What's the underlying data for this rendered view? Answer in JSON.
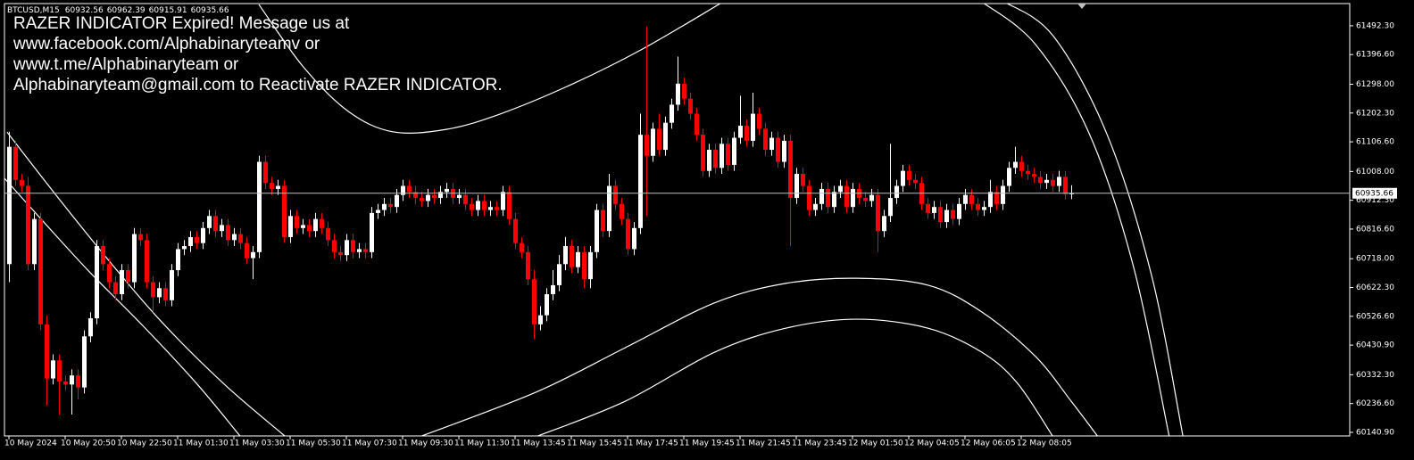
{
  "chart_data": {
    "type": "candlestick",
    "symbol": "BTCUSD,M15",
    "annotations": [
      "RAZER INDICATOR Expired! Message us at",
      "www.facebook.com/Alphabinaryteamv or",
      "www.t.me/Alphabinaryteam or",
      "Alphabinaryteam@gmail.com to Reactivate RAZER INDICATOR."
    ],
    "categories": [
      "10 May 2024",
      null,
      null,
      null,
      null,
      null,
      null,
      null,
      null,
      "10 May 20:50",
      null,
      null,
      null,
      null,
      null,
      null,
      null,
      null,
      "10 May 22:50",
      null,
      null,
      null,
      null,
      null,
      null,
      null,
      null,
      "11 May 01:30",
      null,
      null,
      null,
      null,
      null,
      null,
      null,
      null,
      "11 May 03:30",
      null,
      null,
      null,
      null,
      null,
      null,
      null,
      null,
      "11 May 05:30",
      null,
      null,
      null,
      null,
      null,
      null,
      null,
      null,
      "11 May 07:30",
      null,
      null,
      null,
      null,
      null,
      null,
      null,
      null,
      "11 May 09:30",
      null,
      null,
      null,
      null,
      null,
      null,
      null,
      null,
      "11 May 11:30",
      null,
      null,
      null,
      null,
      null,
      null,
      null,
      null,
      "11 May 13:45",
      null,
      null,
      null,
      null,
      null,
      null,
      null,
      null,
      "11 May 15:45",
      null,
      null,
      null,
      null,
      null,
      null,
      null,
      null,
      "11 May 17:45",
      null,
      null,
      null,
      null,
      null,
      null,
      null,
      null,
      "11 May 19:45",
      null,
      null,
      null,
      null,
      null,
      null,
      null,
      null,
      "11 May 21:45",
      null,
      null,
      null,
      null,
      null,
      null,
      null,
      null,
      "11 May 23:45",
      null,
      null,
      null,
      null,
      null,
      null,
      null,
      null,
      "12 May 01:50",
      null,
      null,
      null,
      null,
      null,
      null,
      null,
      null,
      "12 May 04:05",
      null,
      null,
      null,
      null,
      null,
      null,
      null,
      null,
      "12 May 06:05",
      null,
      null,
      null,
      null,
      null,
      null,
      null,
      null,
      "12 May 08:05",
      null,
      null,
      null,
      null,
      null,
      null,
      null,
      null
    ],
    "open": [
      60700,
      61090,
      60980,
      60960,
      60700,
      60850,
      60500,
      60320,
      60380,
      60310,
      60300,
      60330,
      60290,
      60460,
      60520,
      60760,
      60700,
      60640,
      60600,
      60680,
      60640,
      60800,
      60780,
      60640,
      60590,
      60620,
      60580,
      60680,
      60750,
      60760,
      60790,
      60770,
      60820,
      60860,
      60810,
      60830,
      60780,
      60800,
      60770,
      60720,
      60740,
      61040,
      60970,
      60950,
      60960,
      60790,
      60860,
      60820,
      60830,
      60810,
      60850,
      60820,
      60780,
      60740,
      60730,
      60780,
      60740,
      60750,
      60740,
      60870,
      60880,
      60900,
      60890,
      60930,
      60960,
      60940,
      60920,
      60910,
      60930,
      60920,
      60940,
      60950,
      60920,
      60930,
      60900,
      60880,
      60910,
      60880,
      60890,
      60880,
      60940,
      60850,
      60770,
      60740,
      60650,
      60500,
      60530,
      60600,
      60630,
      60700,
      60760,
      60690,
      60740,
      60650,
      60740,
      60880,
      60810,
      60960,
      60900,
      60850,
      60750,
      60820,
      61130,
      61060,
      61150,
      61080,
      61170,
      61230,
      61300,
      61250,
      61200,
      61130,
      61010,
      61080,
      61020,
      61100,
      61030,
      61120,
      61160,
      61110,
      61200,
      61150,
      61080,
      61120,
      61040,
      61110,
      60920,
      61000,
      60960,
      60880,
      60900,
      60950,
      60890,
      60940,
      60960,
      60890,
      60950,
      60920,
      60910,
      60930,
      60810,
      60860,
      60920,
      60960,
      61010,
      60980,
      60970,
      60900,
      60870,
      60890,
      60840,
      60880,
      60850,
      60900,
      60930,
      60900,
      60880,
      60890,
      60940,
      60900,
      60960,
      61020,
      61040,
      61010,
      61000,
      60990,
      60970,
      60980,
      60960,
      60990,
      60932.56
    ],
    "high": [
      61140,
      61110,
      61000,
      60990,
      60870,
      60870,
      60530,
      60400,
      60400,
      60330,
      60350,
      60350,
      60480,
      60540,
      60780,
      60780,
      60720,
      60660,
      60700,
      60700,
      60820,
      60820,
      60800,
      60660,
      60640,
      60640,
      60700,
      60770,
      60780,
      60810,
      60810,
      60840,
      60880,
      60880,
      60850,
      60850,
      60820,
      60820,
      60790,
      60760,
      61060,
      61060,
      60990,
      60980,
      60980,
      60880,
      60880,
      60850,
      60850,
      60870,
      60870,
      60840,
      60800,
      60760,
      60800,
      60800,
      60770,
      60770,
      60890,
      60900,
      60920,
      60920,
      60950,
      60980,
      60980,
      60960,
      60940,
      60950,
      60950,
      60960,
      60970,
      60970,
      60950,
      60950,
      60920,
      60930,
      60930,
      60910,
      60910,
      60960,
      60960,
      60870,
      60790,
      60760,
      60680,
      60560,
      60620,
      60680,
      60730,
      60790,
      60780,
      60760,
      60760,
      60760,
      60900,
      60900,
      61000,
      60980,
      60920,
      60870,
      60840,
      61200,
      61490,
      61170,
      61200,
      61190,
      61250,
      61390,
      61320,
      61270,
      61220,
      61150,
      61100,
      61100,
      61120,
      61120,
      61140,
      61260,
      61180,
      61270,
      61220,
      61170,
      61140,
      61140,
      61130,
      61130,
      61020,
      61020,
      60980,
      60920,
      60970,
      60970,
      60960,
      60980,
      60980,
      60970,
      60970,
      60940,
      60950,
      60950,
      60880,
      61100,
      60980,
      61030,
      61030,
      61000,
      60990,
      60920,
      60910,
      60910,
      60900,
      60900,
      60920,
      60950,
      60950,
      60920,
      60910,
      60980,
      60960,
      60980,
      61040,
      61090,
      61060,
      61030,
      61020,
      61010,
      61000,
      61000,
      61010,
      61010,
      60962.39
    ],
    "low": [
      60640,
      60960,
      60940,
      60680,
      60680,
      60480,
      60230,
      60300,
      60200,
      60280,
      60200,
      60250,
      60270,
      60440,
      60500,
      60680,
      60620,
      60580,
      60580,
      60620,
      60620,
      60760,
      60620,
      60540,
      60570,
      60560,
      60560,
      60660,
      60730,
      60740,
      60750,
      60750,
      60800,
      60790,
      60790,
      60760,
      60760,
      60750,
      60700,
      60650,
      60720,
      60950,
      60930,
      60930,
      60770,
      60770,
      60800,
      60800,
      60790,
      60790,
      60800,
      60760,
      60720,
      60710,
      60710,
      60720,
      60720,
      60720,
      60720,
      60850,
      60860,
      60870,
      60870,
      60910,
      60920,
      60900,
      60890,
      60890,
      60900,
      60900,
      60920,
      60900,
      60900,
      60880,
      60860,
      60860,
      60860,
      60860,
      60860,
      60860,
      60830,
      60750,
      60720,
      60630,
      60450,
      60480,
      60510,
      60580,
      60610,
      60680,
      60670,
      60670,
      60620,
      60620,
      60720,
      60790,
      60790,
      60880,
      60830,
      60730,
      60730,
      60800,
      60860,
      61040,
      61060,
      61060,
      61150,
      61210,
      61230,
      61180,
      61110,
      60990,
      60990,
      61000,
      61000,
      61010,
      61010,
      61100,
      61090,
      61090,
      61130,
      61060,
      61060,
      61020,
      61020,
      60760,
      60900,
      60940,
      60860,
      60860,
      60880,
      60870,
      60870,
      60920,
      60870,
      60870,
      60900,
      60890,
      60890,
      60740,
      60790,
      60840,
      60900,
      60940,
      60960,
      60950,
      60880,
      60850,
      60850,
      60820,
      60820,
      60830,
      60830,
      60880,
      60880,
      60860,
      60860,
      60870,
      60880,
      60880,
      60940,
      61000,
      60990,
      60980,
      60970,
      60950,
      60950,
      60940,
      60940,
      60915,
      60915.91
    ],
    "close": [
      61090,
      60980,
      60960,
      60700,
      60850,
      60500,
      60320,
      60380,
      60310,
      60300,
      60330,
      60290,
      60460,
      60520,
      60760,
      60700,
      60640,
      60600,
      60680,
      60640,
      60800,
      60780,
      60640,
      60590,
      60620,
      60580,
      60680,
      60750,
      60760,
      60790,
      60770,
      60820,
      60860,
      60810,
      60830,
      60780,
      60800,
      60770,
      60720,
      60740,
      61040,
      60970,
      60950,
      60960,
      60790,
      60860,
      60820,
      60830,
      60810,
      60850,
      60820,
      60780,
      60740,
      60730,
      60780,
      60740,
      60750,
      60740,
      60870,
      60880,
      60900,
      60890,
      60930,
      60960,
      60940,
      60920,
      60910,
      60930,
      60920,
      60940,
      60950,
      60920,
      60930,
      60900,
      60880,
      60910,
      60880,
      60890,
      60880,
      60940,
      60850,
      60770,
      60740,
      60650,
      60500,
      60530,
      60600,
      60630,
      60700,
      60760,
      60690,
      60740,
      60650,
      60740,
      60880,
      60810,
      60960,
      60900,
      60850,
      60750,
      60820,
      61130,
      61060,
      61150,
      61080,
      61170,
      61230,
      61300,
      61250,
      61200,
      61130,
      61010,
      61080,
      61020,
      61100,
      61030,
      61120,
      61160,
      61110,
      61200,
      61150,
      61080,
      61120,
      61040,
      61110,
      60920,
      61000,
      60960,
      60880,
      60900,
      60950,
      60890,
      60940,
      60960,
      60890,
      60950,
      60920,
      60910,
      60930,
      60810,
      60860,
      60920,
      60960,
      61010,
      60980,
      60970,
      60900,
      60870,
      60890,
      60840,
      60880,
      60850,
      60900,
      60930,
      60900,
      60880,
      60890,
      60940,
      60900,
      60960,
      61020,
      61040,
      61010,
      61000,
      60990,
      60970,
      60980,
      60960,
      60990,
      60932.56,
      60935.66
    ],
    "bull_color": "#ffffff",
    "bear_color": "#ff0000",
    "line_color": "#ffffff",
    "lines": [
      {
        "x": [
          40,
          47.1,
          54.3,
          61.4,
          70,
          78.6,
          90,
          101.4,
          114.3
        ],
        "values": [
          61563,
          61356,
          61208,
          61140,
          61148,
          61199,
          61297,
          61415,
          61572
        ]
      },
      {
        "x": [
          -0.3,
          7.1,
          15.7,
          24.3,
          34.3,
          44.3
        ],
        "values": [
          61139,
          60941,
          60719,
          60511,
          60304,
          60126
        ]
      },
      {
        "x": [
          -0.7,
          5.7,
          12.9,
          21.4,
          30,
          37.1
        ],
        "values": [
          60985,
          60837,
          60674,
          60496,
          60304,
          60126
        ]
      },
      {
        "x": [
          65.7,
          84.3,
          98.6,
          112.9,
          124.3,
          135.7,
          147.1,
          155.7,
          164.3,
          170,
          174.3
        ],
        "values": [
          60126,
          60274,
          60422,
          60571,
          60636,
          60653,
          60630,
          60541,
          60393,
          60244,
          60126
        ]
      },
      {
        "x": [
          84.3,
          98.6,
          112.9,
          124.3,
          135.7,
          147.1,
          155.7,
          161.4,
          167.1
        ],
        "values": [
          60126,
          60244,
          60407,
          60487,
          60517,
          60487,
          60407,
          60304,
          60126
        ]
      },
      {
        "x": [
          155.7,
          164.3,
          172.9,
          180,
          185.7
        ],
        "values": [
          61572,
          61430,
          61133,
          60689,
          60126
        ]
      },
      {
        "x": [
          159.3,
          167.1,
          175.7,
          182.9,
          187.9
        ],
        "values": [
          61572,
          61459,
          61133,
          60659,
          60126
        ]
      }
    ],
    "ylim": [
      60126,
      61578
    ],
    "yticks": [
      {
        "value": 61492.3,
        "label": "61492.30"
      },
      {
        "value": 61396.6,
        "label": "61396.60"
      },
      {
        "value": 61298,
        "label": "61298.00"
      },
      {
        "value": 61202.3,
        "label": "61202.30"
      },
      {
        "value": 61106.6,
        "label": "61106.60"
      },
      {
        "value": 61008,
        "label": "61008.00"
      },
      {
        "value": 60912.3,
        "label": "60912.30"
      },
      {
        "value": 60816.6,
        "label": "60816.60"
      },
      {
        "value": 60718,
        "label": "60718.00"
      },
      {
        "value": 60622.3,
        "label": "60622.30"
      },
      {
        "value": 60526.6,
        "label": "60526.60"
      },
      {
        "value": 60430.9,
        "label": "60430.90"
      },
      {
        "value": 60332.3,
        "label": "60332.30"
      },
      {
        "value": 60236.6,
        "label": "60236.60"
      },
      {
        "value": 60140.9,
        "label": "60140.90"
      }
    ]
  }
}
